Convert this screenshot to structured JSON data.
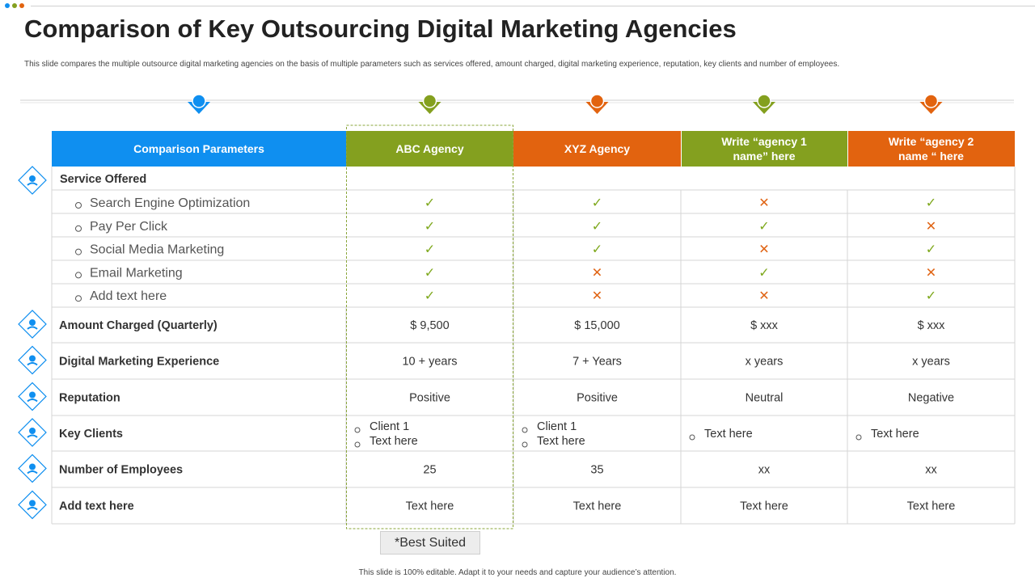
{
  "title": "Comparison of Key Outsourcing Digital Marketing Agencies",
  "subtitle": "This slide compares the multiple  outsource digital marketing agencies on the basis of multiple  parameters such as services offered, amount charged, digital marketing experience, reputation, key clients and number of employees.",
  "footer": "This slide is 100% editable.  Adapt it to your needs and capture your audience’s attention.",
  "best_suited_label": "*Best Suited",
  "colors": {
    "blue": "#0f8ff0",
    "green": "#84a01f",
    "orange": "#e2630f",
    "check": "#7ea81c",
    "cross": "#e06414"
  },
  "header": {
    "param_label": "Comparison Parameters",
    "agencies": [
      {
        "name": "ABC Agency",
        "color": "#84a01f"
      },
      {
        "name": "XYZ Agency",
        "color": "#e2630f"
      },
      {
        "name": "Write “agency 1 name” here",
        "color": "#84a01f"
      },
      {
        "name": "Write “agency 2 name “ here",
        "color": "#e2630f"
      }
    ]
  },
  "services": {
    "label": "Service Offered",
    "icon": "hand-gear-icon",
    "items": [
      {
        "name": "Search Engine Optimization",
        "marks": [
          "check",
          "check",
          "cross",
          "check"
        ]
      },
      {
        "name": "Pay Per Click",
        "marks": [
          "check",
          "check",
          "check",
          "cross"
        ]
      },
      {
        "name": "Social Media Marketing",
        "marks": [
          "check",
          "check",
          "cross",
          "check"
        ]
      },
      {
        "name": "Email Marketing",
        "marks": [
          "check",
          "cross",
          "check",
          "cross"
        ]
      },
      {
        "name": "Add text here",
        "marks": [
          "check",
          "cross",
          "cross",
          "check"
        ]
      }
    ]
  },
  "rows": [
    {
      "label": "Amount Charged (Quarterly)",
      "icon": "money-hand-icon",
      "values": [
        "$ 9,500",
        "$ 15,000",
        "$ xxx",
        "$ xxx"
      ]
    },
    {
      "label": "Digital Marketing Experience",
      "icon": "laptop-chart-icon",
      "values": [
        "10 + years",
        "7 + Years",
        "x years",
        "x years"
      ]
    },
    {
      "label": "Reputation",
      "icon": "medal-icon",
      "values": [
        "Positive",
        "Positive",
        "Neutral",
        "Negative"
      ]
    },
    {
      "label": "Key Clients",
      "icon": "people-group-icon",
      "values": [
        [
          "Client 1",
          "Text here"
        ],
        [
          "Client 1",
          "Text here"
        ],
        [
          "Text here"
        ],
        [
          "Text here"
        ]
      ]
    },
    {
      "label": "Number of Employees",
      "icon": "team-icon",
      "values": [
        "25",
        "35",
        "xx",
        "xx"
      ]
    },
    {
      "label": "Add  text here",
      "icon": "presentation-icon",
      "values": [
        "Text here",
        "Text here",
        "Text here",
        "Text here"
      ]
    }
  ]
}
